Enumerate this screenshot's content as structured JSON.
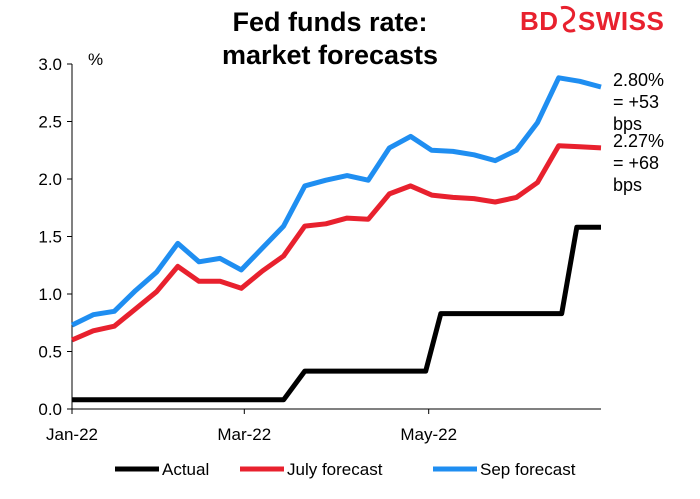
{
  "brand": {
    "logo_left": "BD",
    "logo_right": "SWISS",
    "logo_color": "#e8212e"
  },
  "chart_data": {
    "type": "line",
    "title_lines": [
      "Fed funds rate:",
      "market forecasts"
    ],
    "unit_label": "%",
    "ylim": [
      0,
      3.0
    ],
    "yticks": [
      "0.0",
      "0.5",
      "1.0",
      "1.5",
      "2.0",
      "2.5",
      "3.0"
    ],
    "x_start": "2022-01-03",
    "x_end": "2022-06-27",
    "xticks": [
      {
        "label": "Jan-22",
        "date": "2022-01-01"
      },
      {
        "label": "Mar-22",
        "date": "2022-03-01"
      },
      {
        "label": "May-22",
        "date": "2022-05-01"
      }
    ],
    "grid": false,
    "legend_position": "bottom",
    "series": [
      {
        "name": "Actual",
        "color": "#000000",
        "points": [
          [
            "2022-01-03",
            0.08
          ],
          [
            "2022-01-24",
            0.08
          ],
          [
            "2022-02-14",
            0.08
          ],
          [
            "2022-03-07",
            0.08
          ],
          [
            "2022-03-14",
            0.08
          ],
          [
            "2022-03-21",
            0.33
          ],
          [
            "2022-04-04",
            0.33
          ],
          [
            "2022-04-25",
            0.33
          ],
          [
            "2022-04-30",
            0.33
          ],
          [
            "2022-05-05",
            0.83
          ],
          [
            "2022-05-23",
            0.83
          ],
          [
            "2022-06-10",
            0.83
          ],
          [
            "2022-06-14",
            0.83
          ],
          [
            "2022-06-19",
            1.58
          ],
          [
            "2022-06-27",
            1.58
          ]
        ]
      },
      {
        "name": "July forecast",
        "color": "#e8212e",
        "points": [
          [
            "2022-01-03",
            0.6
          ],
          [
            "2022-01-10",
            0.68
          ],
          [
            "2022-01-17",
            0.72
          ],
          [
            "2022-01-24",
            0.87
          ],
          [
            "2022-01-31",
            1.02
          ],
          [
            "2022-02-07",
            1.24
          ],
          [
            "2022-02-14",
            1.11
          ],
          [
            "2022-02-21",
            1.11
          ],
          [
            "2022-02-28",
            1.05
          ],
          [
            "2022-03-07",
            1.2
          ],
          [
            "2022-03-14",
            1.33
          ],
          [
            "2022-03-21",
            1.59
          ],
          [
            "2022-03-28",
            1.61
          ],
          [
            "2022-04-04",
            1.66
          ],
          [
            "2022-04-11",
            1.65
          ],
          [
            "2022-04-18",
            1.87
          ],
          [
            "2022-04-25",
            1.94
          ],
          [
            "2022-05-02",
            1.86
          ],
          [
            "2022-05-09",
            1.84
          ],
          [
            "2022-05-16",
            1.83
          ],
          [
            "2022-05-23",
            1.8
          ],
          [
            "2022-05-30",
            1.84
          ],
          [
            "2022-06-06",
            1.97
          ],
          [
            "2022-06-13",
            2.29
          ],
          [
            "2022-06-20",
            2.28
          ],
          [
            "2022-06-27",
            2.27
          ]
        ]
      },
      {
        "name": "Sep forecast",
        "color": "#1f8ef1",
        "points": [
          [
            "2022-01-03",
            0.73
          ],
          [
            "2022-01-10",
            0.82
          ],
          [
            "2022-01-17",
            0.85
          ],
          [
            "2022-01-24",
            1.03
          ],
          [
            "2022-01-31",
            1.19
          ],
          [
            "2022-02-07",
            1.44
          ],
          [
            "2022-02-14",
            1.28
          ],
          [
            "2022-02-21",
            1.31
          ],
          [
            "2022-02-28",
            1.21
          ],
          [
            "2022-03-07",
            1.4
          ],
          [
            "2022-03-14",
            1.59
          ],
          [
            "2022-03-21",
            1.94
          ],
          [
            "2022-03-28",
            1.99
          ],
          [
            "2022-04-04",
            2.03
          ],
          [
            "2022-04-11",
            1.99
          ],
          [
            "2022-04-18",
            2.27
          ],
          [
            "2022-04-25",
            2.37
          ],
          [
            "2022-05-02",
            2.25
          ],
          [
            "2022-05-09",
            2.24
          ],
          [
            "2022-05-16",
            2.21
          ],
          [
            "2022-05-23",
            2.16
          ],
          [
            "2022-05-30",
            2.25
          ],
          [
            "2022-06-06",
            2.49
          ],
          [
            "2022-06-13",
            2.88
          ],
          [
            "2022-06-20",
            2.85
          ],
          [
            "2022-06-27",
            2.8
          ]
        ]
      }
    ],
    "annotations": [
      {
        "lines": [
          "2.80%",
          "= +53",
          "bps"
        ],
        "value": 2.8,
        "series": "Sep forecast"
      },
      {
        "lines": [
          "2.27%",
          "= +68",
          "bps"
        ],
        "value": 2.27,
        "series": "July forecast"
      }
    ]
  }
}
